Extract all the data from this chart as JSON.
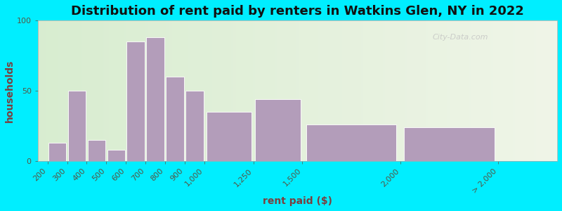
{
  "title": "Distribution of rent paid by renters in Watkins Glen, NY in 2022",
  "xlabel": "rent paid ($)",
  "ylabel": "households",
  "bar_left_edges": [
    200,
    300,
    400,
    500,
    600,
    700,
    800,
    900,
    1000,
    1250,
    1500,
    2000
  ],
  "bar_widths": [
    100,
    100,
    100,
    100,
    100,
    100,
    100,
    100,
    250,
    250,
    500,
    500
  ],
  "values": [
    13,
    50,
    15,
    8,
    85,
    88,
    60,
    50,
    35,
    44,
    26,
    24
  ],
  "bar_color": "#b39dba",
  "bar_edge_color": "#ffffff",
  "ylim": [
    0,
    100
  ],
  "yticks": [
    0,
    50,
    100
  ],
  "xtick_positions": [
    200,
    300,
    400,
    500,
    600,
    700,
    800,
    900,
    1000,
    1250,
    1500,
    2000,
    2500
  ],
  "xtick_labels": [
    "200",
    "300",
    "400",
    "500",
    "600",
    "700",
    "800",
    "900",
    "1,000",
    "1,250",
    "1,500",
    "2,000",
    "> 2,000"
  ],
  "xlim": [
    150,
    2800
  ],
  "background_outer": "#00eeff",
  "title_fontsize": 13,
  "axis_label_fontsize": 10,
  "tick_fontsize": 8,
  "title_color": "#111111",
  "label_color": "#7a3f3f",
  "tick_color": "#555544",
  "watermark": "City-Data.com"
}
